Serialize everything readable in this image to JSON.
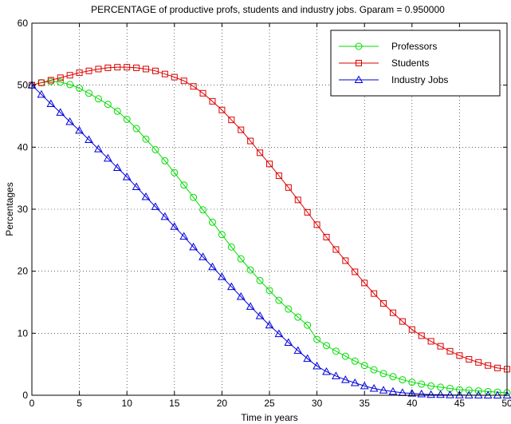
{
  "chart_data": {
    "type": "line",
    "title": "PERCENTAGE of productive profs, students and industry jobs. Gparam = 0.950000",
    "xlabel": "Time in years",
    "ylabel": "Percentages",
    "xlim": [
      0,
      50
    ],
    "ylim": [
      0,
      60
    ],
    "xticks": [
      "0",
      "5",
      "10",
      "15",
      "20",
      "25",
      "30",
      "35",
      "40",
      "45",
      "50"
    ],
    "yticks": [
      "0",
      "10",
      "20",
      "30",
      "40",
      "50",
      "60"
    ],
    "grid": true,
    "legend_position": "top-right",
    "x": [
      0,
      1,
      2,
      3,
      4,
      5,
      6,
      7,
      8,
      9,
      10,
      11,
      12,
      13,
      14,
      15,
      16,
      17,
      18,
      19,
      20,
      21,
      22,
      23,
      24,
      25,
      26,
      27,
      28,
      29,
      30,
      31,
      32,
      33,
      34,
      35,
      36,
      37,
      38,
      39,
      40,
      41,
      42,
      43,
      44,
      45,
      46,
      47,
      48,
      49,
      50
    ],
    "series": [
      {
        "name": "Professors",
        "color": "#00dd00",
        "marker": "circle",
        "values": [
          50.0,
          50.4,
          50.6,
          50.5,
          50.1,
          49.5,
          48.7,
          47.8,
          46.9,
          45.8,
          44.5,
          43.0,
          41.3,
          39.6,
          37.8,
          35.9,
          33.9,
          31.9,
          29.9,
          27.9,
          25.9,
          23.9,
          22.0,
          20.2,
          18.5,
          16.9,
          15.3,
          13.9,
          12.6,
          11.3,
          9.0,
          8.0,
          7.1,
          6.3,
          5.5,
          4.8,
          4.1,
          3.5,
          3.0,
          2.5,
          2.1,
          1.8,
          1.5,
          1.3,
          1.1,
          0.9,
          0.8,
          0.7,
          0.6,
          0.5,
          0.4
        ]
      },
      {
        "name": "Students",
        "color": "#dd0000",
        "marker": "square",
        "values": [
          50.0,
          50.4,
          50.8,
          51.2,
          51.6,
          52.0,
          52.3,
          52.6,
          52.8,
          52.9,
          52.9,
          52.8,
          52.6,
          52.3,
          51.8,
          51.3,
          50.7,
          49.8,
          48.7,
          47.4,
          46.0,
          44.4,
          42.8,
          41.0,
          39.1,
          37.3,
          35.4,
          33.5,
          31.5,
          29.5,
          27.5,
          25.5,
          23.5,
          21.7,
          19.9,
          18.1,
          16.4,
          14.8,
          13.3,
          11.9,
          10.6,
          9.6,
          8.7,
          7.9,
          7.1,
          6.4,
          5.8,
          5.3,
          4.8,
          4.4,
          4.2
        ]
      },
      {
        "name": "Industry Jobs",
        "color": "#0000dd",
        "marker": "triangle",
        "values": [
          50.0,
          48.5,
          47.0,
          45.6,
          44.1,
          42.7,
          41.2,
          39.7,
          38.2,
          36.7,
          35.2,
          33.6,
          32.0,
          30.4,
          28.8,
          27.2,
          25.6,
          23.9,
          22.3,
          20.7,
          19.1,
          17.5,
          15.9,
          14.3,
          12.8,
          11.3,
          9.9,
          8.5,
          7.2,
          5.9,
          4.7,
          3.8,
          3.1,
          2.5,
          2.0,
          1.5,
          1.1,
          0.8,
          0.6,
          0.4,
          0.3,
          0.2,
          0.1,
          0.1,
          0.05,
          0.03,
          0.02,
          0.01,
          0.0,
          0.0,
          0.0
        ]
      }
    ]
  }
}
